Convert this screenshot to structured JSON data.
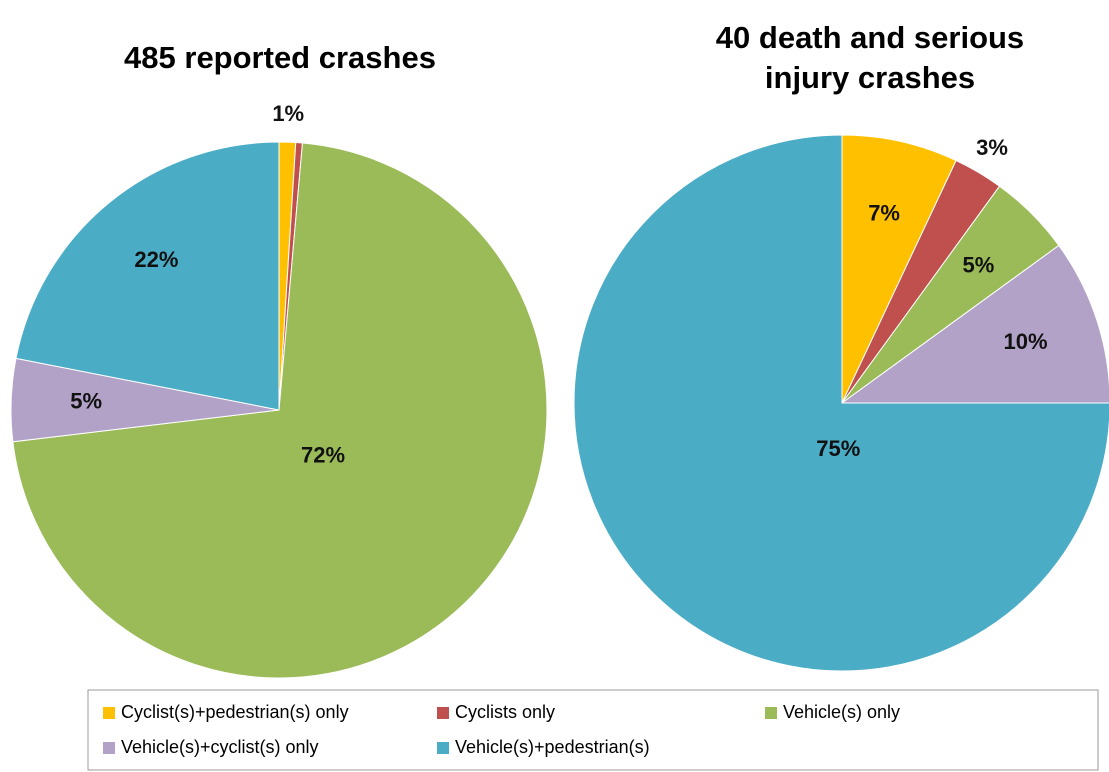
{
  "chart_data": [
    {
      "type": "pie",
      "title": "485 reported crashes",
      "categories": [
        "Cyclist(s)+pedestrian(s) only",
        "Cyclists only",
        "Vehicle(s) only",
        "Vehicle(s)+cyclist(s) only",
        "Vehicle(s)+pedestrian(s)"
      ],
      "values": [
        1,
        0.4,
        72,
        5,
        22
      ],
      "value_labels": [
        "1%",
        null,
        "72%",
        "5%",
        "22%"
      ],
      "colors": [
        "#ffc000",
        "#c0504d",
        "#9bbb59",
        "#b3a2c7",
        "#4bacc6"
      ]
    },
    {
      "type": "pie",
      "title": "40 death and serious injury crashes",
      "categories": [
        "Cyclist(s)+pedestrian(s) only",
        "Cyclists only",
        "Vehicle(s) only",
        "Vehicle(s)+cyclist(s) only",
        "Vehicle(s)+pedestrian(s)"
      ],
      "values": [
        7,
        3,
        5,
        10,
        75
      ],
      "value_labels": [
        "7%",
        "3%",
        "5%",
        "10%",
        "75%"
      ],
      "colors": [
        "#ffc000",
        "#c0504d",
        "#9bbb59",
        "#b3a2c7",
        "#4bacc6"
      ]
    }
  ]
}
